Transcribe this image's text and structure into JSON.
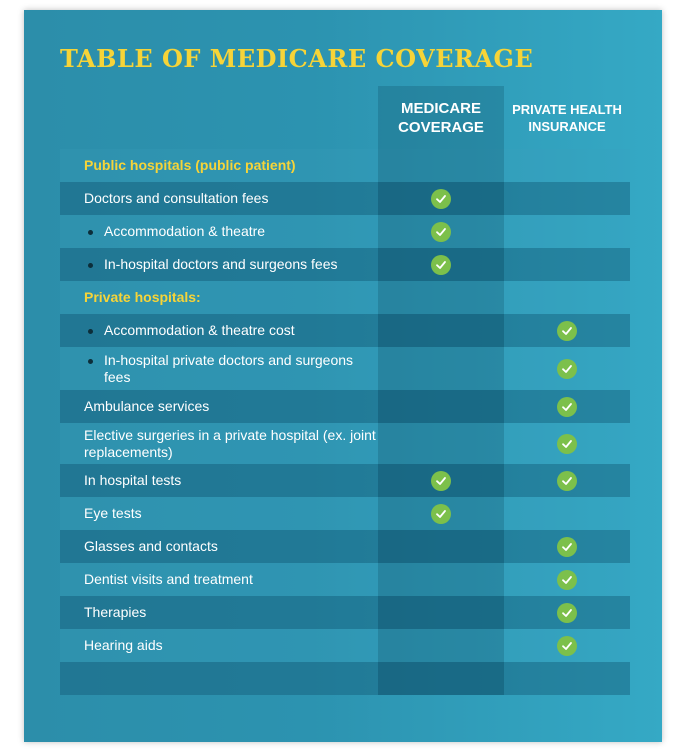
{
  "title": "TABLE OF MEDICARE COVERAGE",
  "columns": {
    "medicare": "MEDICARE COVERAGE",
    "private": "PRIVATE HEALTH INSURANCE"
  },
  "rows": [
    {
      "label": "Public hospitals (public patient)",
      "type": "section",
      "medicare": false,
      "private": false
    },
    {
      "label": "Doctors and consultation fees",
      "type": "item",
      "medicare": true,
      "private": false
    },
    {
      "label": "Accommodation & theatre",
      "type": "bullet",
      "medicare": true,
      "private": false
    },
    {
      "label": "In-hospital doctors and surgeons fees",
      "type": "bullet",
      "medicare": true,
      "private": false
    },
    {
      "label": "Private hospitals:",
      "type": "section",
      "medicare": false,
      "private": false
    },
    {
      "label": "Accommodation & theatre cost",
      "type": "bullet",
      "medicare": false,
      "private": true
    },
    {
      "label": "In-hospital private doctors and surgeons fees",
      "type": "bullet",
      "medicare": false,
      "private": true
    },
    {
      "label": "Ambulance services",
      "type": "item",
      "medicare": false,
      "private": true
    },
    {
      "label": "Elective surgeries in a private hospital (ex. joint replacements)",
      "type": "item",
      "medicare": false,
      "private": true
    },
    {
      "label": "In hospital tests",
      "type": "item",
      "medicare": true,
      "private": true
    },
    {
      "label": "Eye tests",
      "type": "item",
      "medicare": true,
      "private": false
    },
    {
      "label": "Glasses and contacts",
      "type": "item",
      "medicare": false,
      "private": true
    },
    {
      "label": "Dentist visits and treatment",
      "type": "item",
      "medicare": false,
      "private": true
    },
    {
      "label": "Therapies",
      "type": "item",
      "medicare": false,
      "private": true
    },
    {
      "label": "Hearing aids",
      "type": "item",
      "medicare": false,
      "private": true
    }
  ],
  "colors": {
    "title": "#f6d438",
    "section": "#f6d438",
    "check": "#7cc04b",
    "panel": "#2c8eaa"
  },
  "icons": {
    "check": "check-circle-icon"
  }
}
